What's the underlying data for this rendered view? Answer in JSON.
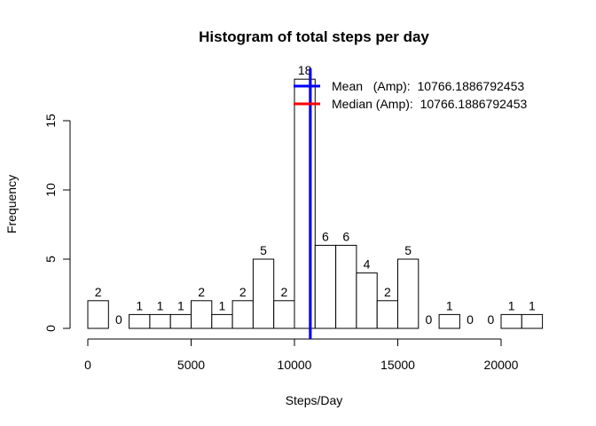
{
  "chart_data": {
    "type": "bar",
    "title": "Histogram of total steps per day",
    "xlabel": "Steps/Day",
    "ylabel": "Frequency",
    "bin_width": 1000,
    "bin_edges": [
      0,
      1000,
      2000,
      3000,
      4000,
      5000,
      6000,
      7000,
      8000,
      9000,
      10000,
      11000,
      12000,
      13000,
      14000,
      15000,
      16000,
      17000,
      18000,
      19000,
      20000,
      21000,
      22000
    ],
    "values": [
      2,
      0,
      1,
      1,
      1,
      2,
      1,
      2,
      5,
      2,
      18,
      6,
      6,
      4,
      2,
      5,
      0,
      1,
      0,
      0,
      1,
      1
    ],
    "xlim": [
      0,
      22000
    ],
    "ylim": [
      0,
      18
    ],
    "x_ticks": [
      0,
      5000,
      10000,
      15000,
      20000
    ],
    "x_tick_labels": [
      "0",
      "5000",
      "10000",
      "15000",
      "20000"
    ],
    "y_ticks": [
      0,
      5,
      10,
      15
    ],
    "y_tick_labels": [
      "0",
      "5",
      "10",
      "15"
    ],
    "vlines": [
      {
        "name": "Mean",
        "value": 10766.1886792453,
        "color": "#0000ff"
      },
      {
        "name": "Median",
        "value": 10766.1886792453,
        "color": "#ff0000"
      }
    ],
    "legend": {
      "placement": "top-right",
      "entries": [
        {
          "label": "Mean   (Amp):  10766.1886792453",
          "color": "#0000ff"
        },
        {
          "label": "Median (Amp):  10766.1886792453",
          "color": "#ff0000"
        }
      ]
    },
    "grid": false
  }
}
